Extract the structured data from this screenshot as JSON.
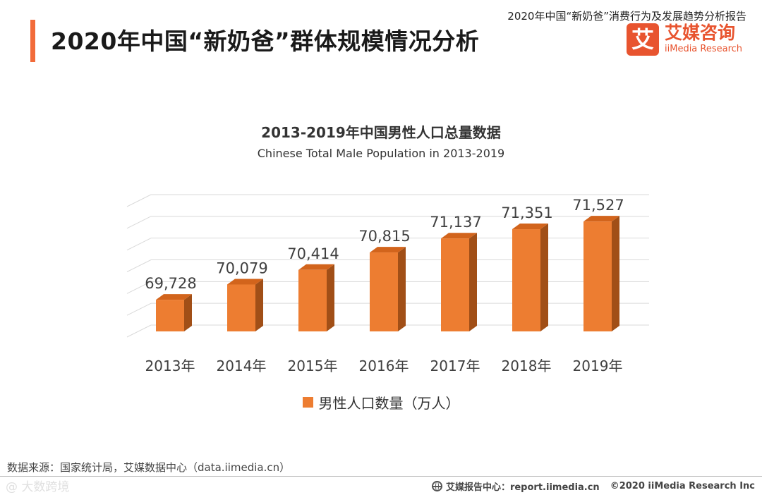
{
  "header": {
    "title": "2020年中国“新奶爸”群体规模情况分析",
    "report_name": "2020年中国“新奶爸”消费行为及发展趋势分析报告"
  },
  "logo": {
    "mark": "艾",
    "name_cn": "艾媒咨询",
    "name_en": "iiMedia Research"
  },
  "chart_data": {
    "type": "bar",
    "title": "2013-2019年中国男性人口总量数据",
    "subtitle": "Chinese Total Male Population in 2013-2019",
    "categories": [
      "2013年",
      "2014年",
      "2015年",
      "2016年",
      "2017年",
      "2018年",
      "2019年"
    ],
    "series": [
      {
        "name": "男性人口数量（万人）",
        "values": [
          69728,
          70079,
          70414,
          70815,
          71137,
          71351,
          71527
        ],
        "labels": [
          "69,728",
          "70,079",
          "70,414",
          "70,815",
          "71,137",
          "71,351",
          "71,527"
        ]
      }
    ],
    "ylim": [
      69000,
      72000
    ],
    "grid": true,
    "legend": "bottom",
    "colors": {
      "front": "#ed7d31",
      "side": "#a14f17",
      "top": "#d2641c",
      "grid": "#d9d9d9"
    }
  },
  "source": "数据来源：国家统计局，艾媒数据中心（data.iimedia.cn）",
  "footer": {
    "watermark": "@ 大数跨境",
    "center_label": "艾媒报告中心：report.iimedia.cn",
    "copyright": "©2020  iiMedia Research  Inc"
  }
}
